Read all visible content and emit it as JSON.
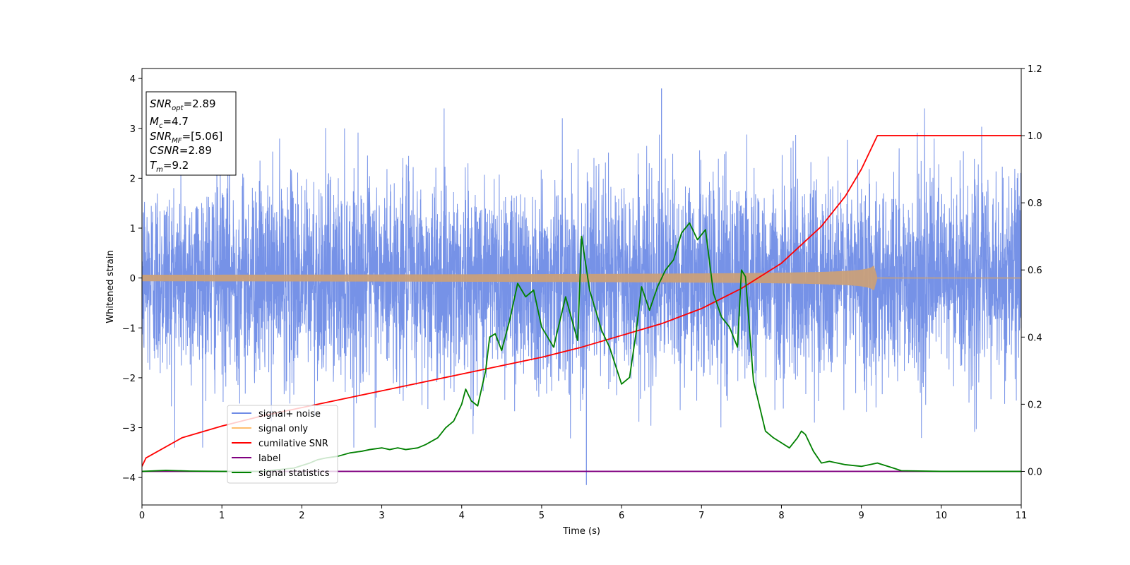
{
  "chart_data": {
    "type": "line",
    "xlabel": "Time (s)",
    "ylabel": "Whitened strain",
    "xlim": [
      0,
      11
    ],
    "ylim": [
      -4.55,
      4.2
    ],
    "y2lim": [
      -0.1,
      1.2
    ],
    "xticks": [
      "0",
      "1",
      "2",
      "3",
      "4",
      "5",
      "6",
      "7",
      "8",
      "9",
      "10",
      "11"
    ],
    "yticks": [
      "4",
      "3",
      "2",
      "1",
      "0",
      "−1",
      "−2",
      "−3",
      "−4"
    ],
    "y2ticks": [
      "1.2",
      "1.0",
      "0.8",
      "0.6",
      "0.4",
      "0.2",
      "0.0"
    ],
    "info_box": {
      "snr_opt": {
        "sym": "SNR",
        "sub": "opt",
        "val": "=2.89"
      },
      "mc": {
        "sym": "M",
        "sub": "c",
        "val": "=4.7"
      },
      "snr_mf": {
        "sym": "SNR",
        "sub": "MF",
        "val": "=[5.06]"
      },
      "csnr": {
        "sym": "CSNR",
        "val": "=2.89"
      },
      "tm": {
        "sym": "T",
        "sub": "m",
        "val": "=9.2"
      }
    },
    "legend": {
      "placement": "lower-left",
      "entries": [
        {
          "label": "signal+ noise",
          "color": "#6f8ce6"
        },
        {
          "label": "signal only",
          "color": "#ffbe6e"
        },
        {
          "label": "cumilative SNR",
          "color": "#ff0000"
        },
        {
          "label": "label",
          "color": "#800080"
        },
        {
          "label": "signal statistics",
          "color": "#008000"
        }
      ]
    },
    "series": [
      {
        "name": "signal+ noise",
        "axis": "left",
        "color": "#6f8ce6",
        "kind": "noise",
        "sample_rate_hz": 2048,
        "sigma": 1.0,
        "min_y": -4.15,
        "min_x": 5.56,
        "max_y": 3.8,
        "max_x": 6.5
      },
      {
        "name": "signal only",
        "axis": "left",
        "color": "#c9a07a",
        "kind": "chirp",
        "t_merger": 9.2,
        "peak_amplitude": 0.3,
        "x_end": 11
      },
      {
        "name": "cumilative SNR",
        "axis": "right",
        "color": "#ff0000",
        "x": [
          0,
          0.05,
          0.5,
          1,
          1.5,
          2,
          2.5,
          3,
          3.5,
          4,
          4.5,
          5,
          5.5,
          6,
          6.5,
          7,
          7.5,
          8,
          8.5,
          8.8,
          9,
          9.1,
          9.2,
          11
        ],
        "y": [
          0.015,
          0.04,
          0.1,
          0.135,
          0.165,
          0.19,
          0.215,
          0.24,
          0.265,
          0.29,
          0.315,
          0.34,
          0.37,
          0.405,
          0.44,
          0.485,
          0.545,
          0.62,
          0.73,
          0.82,
          0.9,
          0.95,
          1.0,
          1.0
        ]
      },
      {
        "name": "label",
        "axis": "right",
        "color": "#800080",
        "x": [
          0,
          11
        ],
        "y": [
          0,
          0
        ]
      },
      {
        "name": "signal statistics",
        "axis": "right",
        "color": "#008000",
        "x": [
          0,
          0.3,
          0.6,
          1.0,
          1.5,
          1.9,
          2.1,
          2.2,
          2.3,
          2.45,
          2.6,
          2.75,
          2.85,
          3.0,
          3.1,
          3.2,
          3.3,
          3.45,
          3.55,
          3.7,
          3.8,
          3.9,
          4.0,
          4.05,
          4.12,
          4.2,
          4.3,
          4.35,
          4.42,
          4.5,
          4.6,
          4.7,
          4.8,
          4.9,
          5.0,
          5.15,
          5.3,
          5.45,
          5.5,
          5.6,
          5.75,
          5.85,
          6.0,
          6.1,
          6.18,
          6.25,
          6.35,
          6.45,
          6.55,
          6.65,
          6.75,
          6.85,
          6.95,
          7.05,
          7.15,
          7.25,
          7.35,
          7.45,
          7.5,
          7.55,
          7.65,
          7.8,
          7.9,
          8.0,
          8.1,
          8.2,
          8.25,
          8.3,
          8.4,
          8.5,
          8.6,
          8.8,
          9.0,
          9.2,
          9.4,
          9.5,
          10,
          11
        ],
        "y": [
          0.0,
          0.003,
          0.001,
          0.0,
          0.0,
          0.01,
          0.025,
          0.035,
          0.04,
          0.045,
          0.055,
          0.06,
          0.065,
          0.07,
          0.065,
          0.07,
          0.065,
          0.07,
          0.08,
          0.1,
          0.13,
          0.15,
          0.2,
          0.245,
          0.21,
          0.195,
          0.3,
          0.4,
          0.41,
          0.36,
          0.45,
          0.56,
          0.52,
          0.54,
          0.43,
          0.37,
          0.52,
          0.39,
          0.7,
          0.54,
          0.42,
          0.37,
          0.26,
          0.28,
          0.41,
          0.55,
          0.48,
          0.55,
          0.6,
          0.63,
          0.71,
          0.74,
          0.69,
          0.72,
          0.53,
          0.46,
          0.43,
          0.37,
          0.6,
          0.58,
          0.27,
          0.12,
          0.1,
          0.085,
          0.07,
          0.1,
          0.12,
          0.11,
          0.06,
          0.025,
          0.03,
          0.02,
          0.015,
          0.025,
          0.01,
          0.002,
          0.0,
          0.0
        ]
      }
    ]
  }
}
